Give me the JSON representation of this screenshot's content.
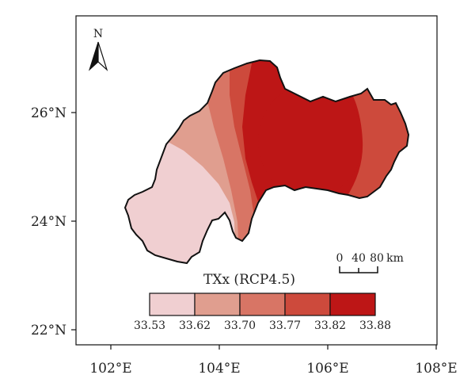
{
  "map": {
    "x_ticks": [
      "102°E",
      "104°E",
      "106°E",
      "108°E"
    ],
    "y_ticks": [
      "26°N",
      "24°N",
      "22°N"
    ],
    "north_label": "N",
    "scale_bar": {
      "labels": [
        "0",
        "40",
        "80"
      ],
      "unit": "km"
    },
    "legend": {
      "title": "TXx (RCP4.5)",
      "breaks": [
        "33.53",
        "33.62",
        "33.70",
        "33.77",
        "33.82",
        "33.88"
      ],
      "colors": [
        "#f0cfd1",
        "#e09e8f",
        "#d87565",
        "#cd4a3c",
        "#bd1616"
      ]
    },
    "region_outline_color": "#111111"
  }
}
